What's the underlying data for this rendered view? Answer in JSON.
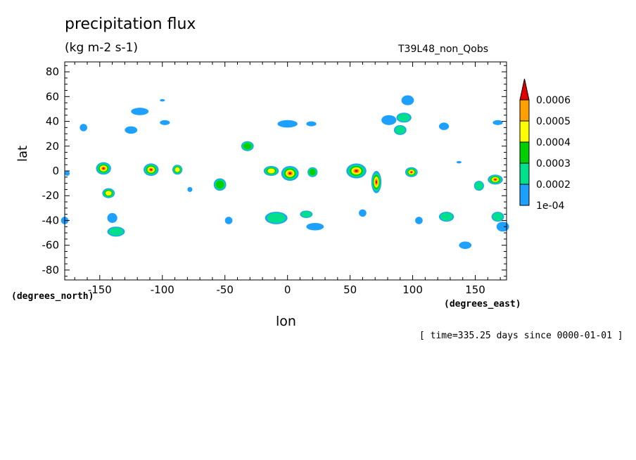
{
  "chart_data": {
    "type": "heatmap",
    "title": "precipitation flux",
    "subtitle": "(kg m-2 s-1)",
    "run_label": "T39L48_non_Qobs",
    "xlabel": "lon",
    "ylabel": "lat",
    "x_units_note": "(degrees_east)",
    "y_units_note": "(degrees_north)",
    "time_note": "[ time=335.25 days since 0000-01-01 ]",
    "xlim": [
      -178,
      175
    ],
    "ylim": [
      -88,
      88
    ],
    "x_ticks": [
      -150,
      -100,
      -50,
      0,
      50,
      100,
      150
    ],
    "x_tick_labels": [
      "-150",
      "-100",
      "-50",
      "0",
      "50",
      "100",
      "150"
    ],
    "y_ticks": [
      -80,
      -60,
      -40,
      -20,
      0,
      20,
      40,
      60,
      80
    ],
    "y_tick_labels": [
      "-80",
      "-60",
      "-40",
      "-20",
      "0",
      "20",
      "40",
      "60",
      "80"
    ],
    "grid": false,
    "colorbar": {
      "levels": [
        "1e-04",
        "0.0002",
        "0.0003",
        "0.0004",
        "0.0005",
        "0.0006"
      ],
      "colors": [
        "#1ea0ff",
        "#00e08c",
        "#00d000",
        "#ffff00",
        "#ffa000",
        "#e00000"
      ],
      "placement": "right"
    },
    "features": [
      {
        "lon": -147,
        "lat": 2,
        "rx": 6,
        "ry": 5,
        "level": 5
      },
      {
        "lon": -143,
        "lat": -18,
        "rx": 5,
        "ry": 4,
        "level": 3
      },
      {
        "lon": -109,
        "lat": 1,
        "rx": 6,
        "ry": 5,
        "level": 5
      },
      {
        "lon": -88,
        "lat": 1,
        "rx": 4,
        "ry": 4,
        "level": 3
      },
      {
        "lon": -54,
        "lat": -11,
        "rx": 5,
        "ry": 5,
        "level": 2
      },
      {
        "lon": -32,
        "lat": 20,
        "rx": 5,
        "ry": 4,
        "level": 2
      },
      {
        "lon": -13,
        "lat": 0,
        "rx": 6,
        "ry": 4,
        "level": 3
      },
      {
        "lon": 2,
        "lat": -2,
        "rx": 7,
        "ry": 6,
        "level": 5
      },
      {
        "lon": 20,
        "lat": -1,
        "rx": 4,
        "ry": 4,
        "level": 2
      },
      {
        "lon": 55,
        "lat": 0,
        "rx": 8,
        "ry": 6,
        "level": 5
      },
      {
        "lon": 71,
        "lat": -9,
        "rx": 4,
        "ry": 9,
        "level": 5
      },
      {
        "lon": 99,
        "lat": -1,
        "rx": 5,
        "ry": 4,
        "level": 5
      },
      {
        "lon": 166,
        "lat": -7,
        "rx": 6,
        "ry": 4,
        "level": 5
      },
      {
        "lon": 153,
        "lat": -12,
        "rx": 4,
        "ry": 4,
        "level": 1
      },
      {
        "lon": 93,
        "lat": 43,
        "rx": 6,
        "ry": 4,
        "level": 1
      },
      {
        "lon": 90,
        "lat": 33,
        "rx": 5,
        "ry": 4,
        "level": 1
      },
      {
        "lon": 96,
        "lat": 57,
        "rx": 5,
        "ry": 4,
        "level": 0
      },
      {
        "lon": 81,
        "lat": 41,
        "rx": 6,
        "ry": 4,
        "level": 0
      },
      {
        "lon": 125,
        "lat": 36,
        "rx": 4,
        "ry": 3,
        "level": 0
      },
      {
        "lon": 168,
        "lat": 39,
        "rx": 4,
        "ry": 2,
        "level": 0
      },
      {
        "lon": -163,
        "lat": 35,
        "rx": 3,
        "ry": 3,
        "level": 0
      },
      {
        "lon": -125,
        "lat": 33,
        "rx": 5,
        "ry": 3,
        "level": 0
      },
      {
        "lon": -118,
        "lat": 48,
        "rx": 7,
        "ry": 3,
        "level": 0
      },
      {
        "lon": -98,
        "lat": 39,
        "rx": 4,
        "ry": 2,
        "level": 0
      },
      {
        "lon": -100,
        "lat": 57,
        "rx": 2,
        "ry": 1,
        "level": 0
      },
      {
        "lon": 0,
        "lat": 38,
        "rx": 8,
        "ry": 3,
        "level": 0
      },
      {
        "lon": 19,
        "lat": 38,
        "rx": 4,
        "ry": 2,
        "level": 0
      },
      {
        "lon": -140,
        "lat": -38,
        "rx": 4,
        "ry": 4,
        "level": 0
      },
      {
        "lon": -137,
        "lat": -49,
        "rx": 7,
        "ry": 4,
        "level": 1
      },
      {
        "lon": -178,
        "lat": -40,
        "rx": 3,
        "ry": 3,
        "level": 0
      },
      {
        "lon": -47,
        "lat": -40,
        "rx": 3,
        "ry": 3,
        "level": 0
      },
      {
        "lon": -9,
        "lat": -38,
        "rx": 9,
        "ry": 5,
        "level": 1
      },
      {
        "lon": 15,
        "lat": -35,
        "rx": 5,
        "ry": 3,
        "level": 1
      },
      {
        "lon": 22,
        "lat": -45,
        "rx": 7,
        "ry": 3,
        "level": 0
      },
      {
        "lon": 60,
        "lat": -34,
        "rx": 3,
        "ry": 3,
        "level": 0
      },
      {
        "lon": 105,
        "lat": -40,
        "rx": 3,
        "ry": 3,
        "level": 0
      },
      {
        "lon": 127,
        "lat": -37,
        "rx": 6,
        "ry": 4,
        "level": 1
      },
      {
        "lon": 142,
        "lat": -60,
        "rx": 5,
        "ry": 3,
        "level": 0
      },
      {
        "lon": 168,
        "lat": -37,
        "rx": 5,
        "ry": 4,
        "level": 1
      },
      {
        "lon": 172,
        "lat": -45,
        "rx": 5,
        "ry": 4,
        "level": 0
      },
      {
        "lon": -176,
        "lat": -2,
        "rx": 2,
        "ry": 2,
        "level": 0
      },
      {
        "lon": -78,
        "lat": -15,
        "rx": 2,
        "ry": 2,
        "level": 0
      },
      {
        "lon": 137,
        "lat": 7,
        "rx": 2,
        "ry": 1,
        "level": 0
      }
    ]
  }
}
